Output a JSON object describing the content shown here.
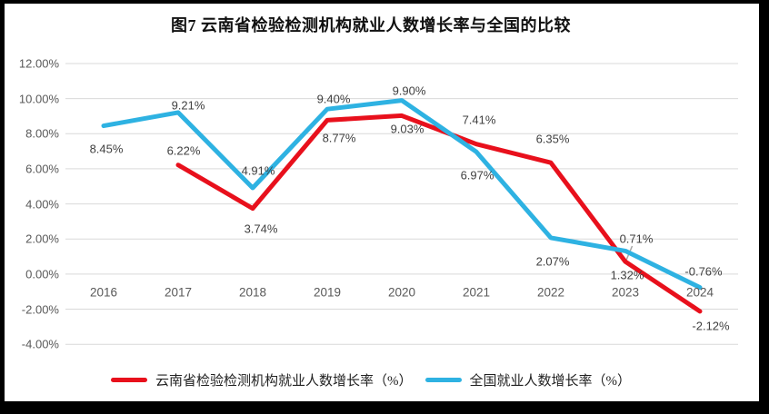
{
  "window": {
    "title": "图7  云南省检验检测机构就业人数增长率与全国的比较"
  },
  "chart_data": {
    "type": "line",
    "title": "图7  云南省检验检测机构就业人数增长率与全国的比较",
    "categories": [
      "2016",
      "2017",
      "2018",
      "2019",
      "2020",
      "2021",
      "2022",
      "2023",
      "2024"
    ],
    "series": [
      {
        "name": "云南省检验检测机构就业人数增长率（%）",
        "color": "#e8101c",
        "values": [
          null,
          6.22,
          3.74,
          8.77,
          9.03,
          7.41,
          6.35,
          0.71,
          -2.12
        ],
        "point_labels": [
          "",
          "6.22%",
          "3.74%",
          "8.77%",
          "9.03%",
          "7.41%",
          "6.35%",
          "0.71%",
          "-2.12%"
        ]
      },
      {
        "name": "全国就业人数增长率（%）",
        "color": "#2eb2e2",
        "values": [
          8.45,
          9.21,
          4.91,
          9.4,
          9.9,
          6.97,
          2.07,
          1.32,
          -0.76
        ],
        "point_labels": [
          "8.45%",
          "9.21%",
          "4.91%",
          "9.40%",
          "9.90%",
          "6.97%",
          "2.07%",
          "1.32%",
          "-0.76%"
        ]
      }
    ],
    "y_ticks": [
      {
        "label": "12.00%",
        "value": 12
      },
      {
        "label": "10.00%",
        "value": 10
      },
      {
        "label": "8.00%",
        "value": 8
      },
      {
        "label": "6.00%",
        "value": 6
      },
      {
        "label": "4.00%",
        "value": 4
      },
      {
        "label": "2.00%",
        "value": 2
      },
      {
        "label": "0.00%",
        "value": 0
      },
      {
        "label": "-2.00%",
        "value": -2
      },
      {
        "label": "-4.00%",
        "value": -4
      }
    ],
    "ylim": [
      -4,
      12
    ],
    "xlabel": "",
    "ylabel": "",
    "grid": true,
    "gridline_color": "#d9d9d9",
    "leader_line_color": "#a6a6a6",
    "legend_position": "bottom"
  },
  "legend": {
    "items": [
      {
        "label": "云南省检验检测机构就业人数增长率（%）",
        "color": "#e8101c"
      },
      {
        "label": "全国就业人数增长率（%）",
        "color": "#2eb2e2"
      }
    ]
  }
}
